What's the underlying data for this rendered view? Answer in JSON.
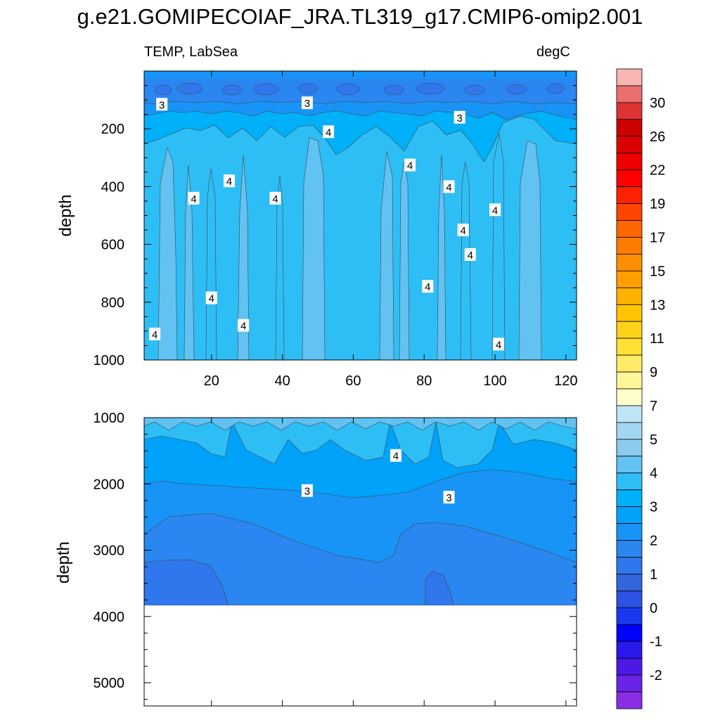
{
  "title": "g.e21.GOMIPECOIAF_JRA.TL319_g17.CMIP6-omip2.001",
  "subtitle_left": "TEMP, LabSea",
  "subtitle_right": "degC",
  "chart_data": [
    {
      "type": "contour",
      "panel": "upper",
      "ylabel": "depth",
      "xlim": [
        1,
        123
      ],
      "ylim": [
        1000,
        0
      ],
      "xticks": [
        20,
        40,
        60,
        80,
        100,
        120
      ],
      "yticks": [
        200,
        400,
        600,
        800,
        1000
      ],
      "contour_labels": [
        {
          "x": 6,
          "y": 115,
          "text": "3"
        },
        {
          "x": 47,
          "y": 110,
          "text": "3"
        },
        {
          "x": 90,
          "y": 160,
          "text": "3"
        },
        {
          "x": 53,
          "y": 210,
          "text": "4"
        },
        {
          "x": 76,
          "y": 325,
          "text": "4"
        },
        {
          "x": 25,
          "y": 380,
          "text": "4"
        },
        {
          "x": 87,
          "y": 400,
          "text": "4"
        },
        {
          "x": 15,
          "y": 440,
          "text": "4"
        },
        {
          "x": 38,
          "y": 440,
          "text": "4"
        },
        {
          "x": 100,
          "y": 480,
          "text": "4"
        },
        {
          "x": 91,
          "y": 550,
          "text": "4"
        },
        {
          "x": 93,
          "y": 635,
          "text": "4"
        },
        {
          "x": 81,
          "y": 745,
          "text": "4"
        },
        {
          "x": 20,
          "y": 785,
          "text": "4"
        },
        {
          "x": 29,
          "y": 880,
          "text": "4"
        },
        {
          "x": 4,
          "y": 910,
          "text": "4"
        },
        {
          "x": 101,
          "y": 945,
          "text": "4"
        }
      ]
    },
    {
      "type": "contour",
      "panel": "lower",
      "ylabel": "depth",
      "xlim": [
        1,
        123
      ],
      "ylim": [
        5350,
        1000
      ],
      "yticks": [
        1000,
        2000,
        3000,
        4000,
        5000
      ],
      "bottom_depth": 3870,
      "contour_labels": [
        {
          "x": 72,
          "y": 1570,
          "text": "4"
        },
        {
          "x": 47,
          "y": 2100,
          "text": "3"
        },
        {
          "x": 87,
          "y": 2200,
          "text": "3"
        }
      ]
    }
  ],
  "colorbar": {
    "labels": [
      "30",
      "26",
      "22",
      "19",
      "17",
      "15",
      "13",
      "11",
      "9",
      "7",
      "5",
      "4",
      "3",
      "2",
      "1",
      "0",
      "-1",
      "-2"
    ],
    "colors": [
      "#f9b4b4",
      "#ea6f6f",
      "#dd3333",
      "#cc0000",
      "#dd0000",
      "#ee0000",
      "#ff0000",
      "#ff2200",
      "#ff4400",
      "#ff6600",
      "#ff7a00",
      "#ff8e00",
      "#ffa000",
      "#ffb300",
      "#ffc400",
      "#ffd21a",
      "#ffe033",
      "#ffec66",
      "#fff599",
      "#ffffcc",
      "#bfe4f6",
      "#a3d6f2",
      "#8acbee",
      "#62c2f2",
      "#2ebef6",
      "#00b0f8",
      "#00a2fa",
      "#1894f7",
      "#2a86f0",
      "#3076ec",
      "#3366dc",
      "#2d52e6",
      "#1a38f0",
      "#0000ff",
      "#2a18ec",
      "#4c18e6",
      "#6a24e8",
      "#8a2ee6"
    ]
  }
}
